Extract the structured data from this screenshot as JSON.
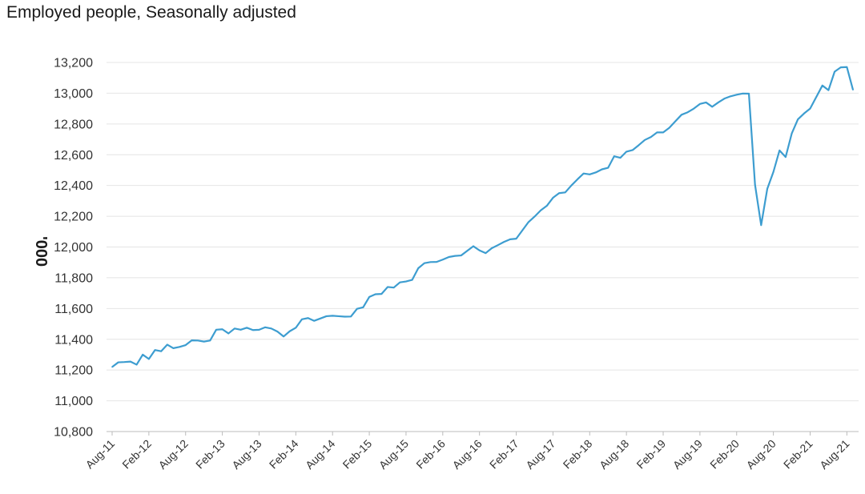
{
  "title": "Employed people, Seasonally adjusted",
  "chart_data": {
    "type": "line",
    "title": "Employed people, Seasonally adjusted",
    "ylabel": "'000",
    "xlabel": "",
    "ylim": [
      10800,
      13200
    ],
    "yticks": [
      "10,800",
      "11,000",
      "11,200",
      "11,400",
      "11,600",
      "11,800",
      "12,000",
      "12,200",
      "12,400",
      "12,600",
      "12,800",
      "13,000",
      "13,200"
    ],
    "ytick_values": [
      10800,
      11000,
      11200,
      11400,
      11600,
      11800,
      12000,
      12200,
      12400,
      12600,
      12800,
      13000,
      13200
    ],
    "xticks": [
      "Aug-11",
      "Feb-12",
      "Aug-12",
      "Feb-13",
      "Aug-13",
      "Feb-14",
      "Aug-14",
      "Feb-15",
      "Aug-15",
      "Feb-16",
      "Aug-16",
      "Feb-17",
      "Aug-17",
      "Feb-18",
      "Aug-18",
      "Feb-19",
      "Aug-19",
      "Feb-20",
      "Aug-20",
      "Feb-21",
      "Aug-21"
    ],
    "grid": true,
    "color": "#3d9dd0",
    "series": [
      {
        "name": "",
        "values": [
          11220,
          11250,
          11252,
          11255,
          11235,
          11300,
          11272,
          11330,
          11322,
          11365,
          11342,
          11350,
          11362,
          11393,
          11392,
          11385,
          11392,
          11462,
          11465,
          11438,
          11470,
          11462,
          11475,
          11460,
          11462,
          11478,
          11470,
          11450,
          11418,
          11452,
          11475,
          11530,
          11538,
          11520,
          11535,
          11550,
          11553,
          11550,
          11547,
          11548,
          11598,
          11608,
          11675,
          11693,
          11695,
          11740,
          11736,
          11770,
          11776,
          11786,
          11862,
          11895,
          11902,
          11903,
          11918,
          11935,
          11942,
          11945,
          11975,
          12005,
          11978,
          11960,
          11992,
          12012,
          12033,
          12050,
          12054,
          12108,
          12162,
          12198,
          12238,
          12268,
          12320,
          12350,
          12355,
          12400,
          12440,
          12478,
          12472,
          12485,
          12505,
          12515,
          12590,
          12580,
          12620,
          12630,
          12662,
          12696,
          12715,
          12745,
          12745,
          12775,
          12818,
          12860,
          12876,
          12900,
          12930,
          12940,
          12912,
          12940,
          12965,
          12980,
          12990,
          12998,
          12997,
          12405,
          12142,
          12378,
          12488,
          12628,
          12585,
          12738,
          12830,
          12868,
          12900,
          12975,
          13050,
          13020,
          13140,
          13168,
          13170,
          13022
        ]
      }
    ]
  }
}
